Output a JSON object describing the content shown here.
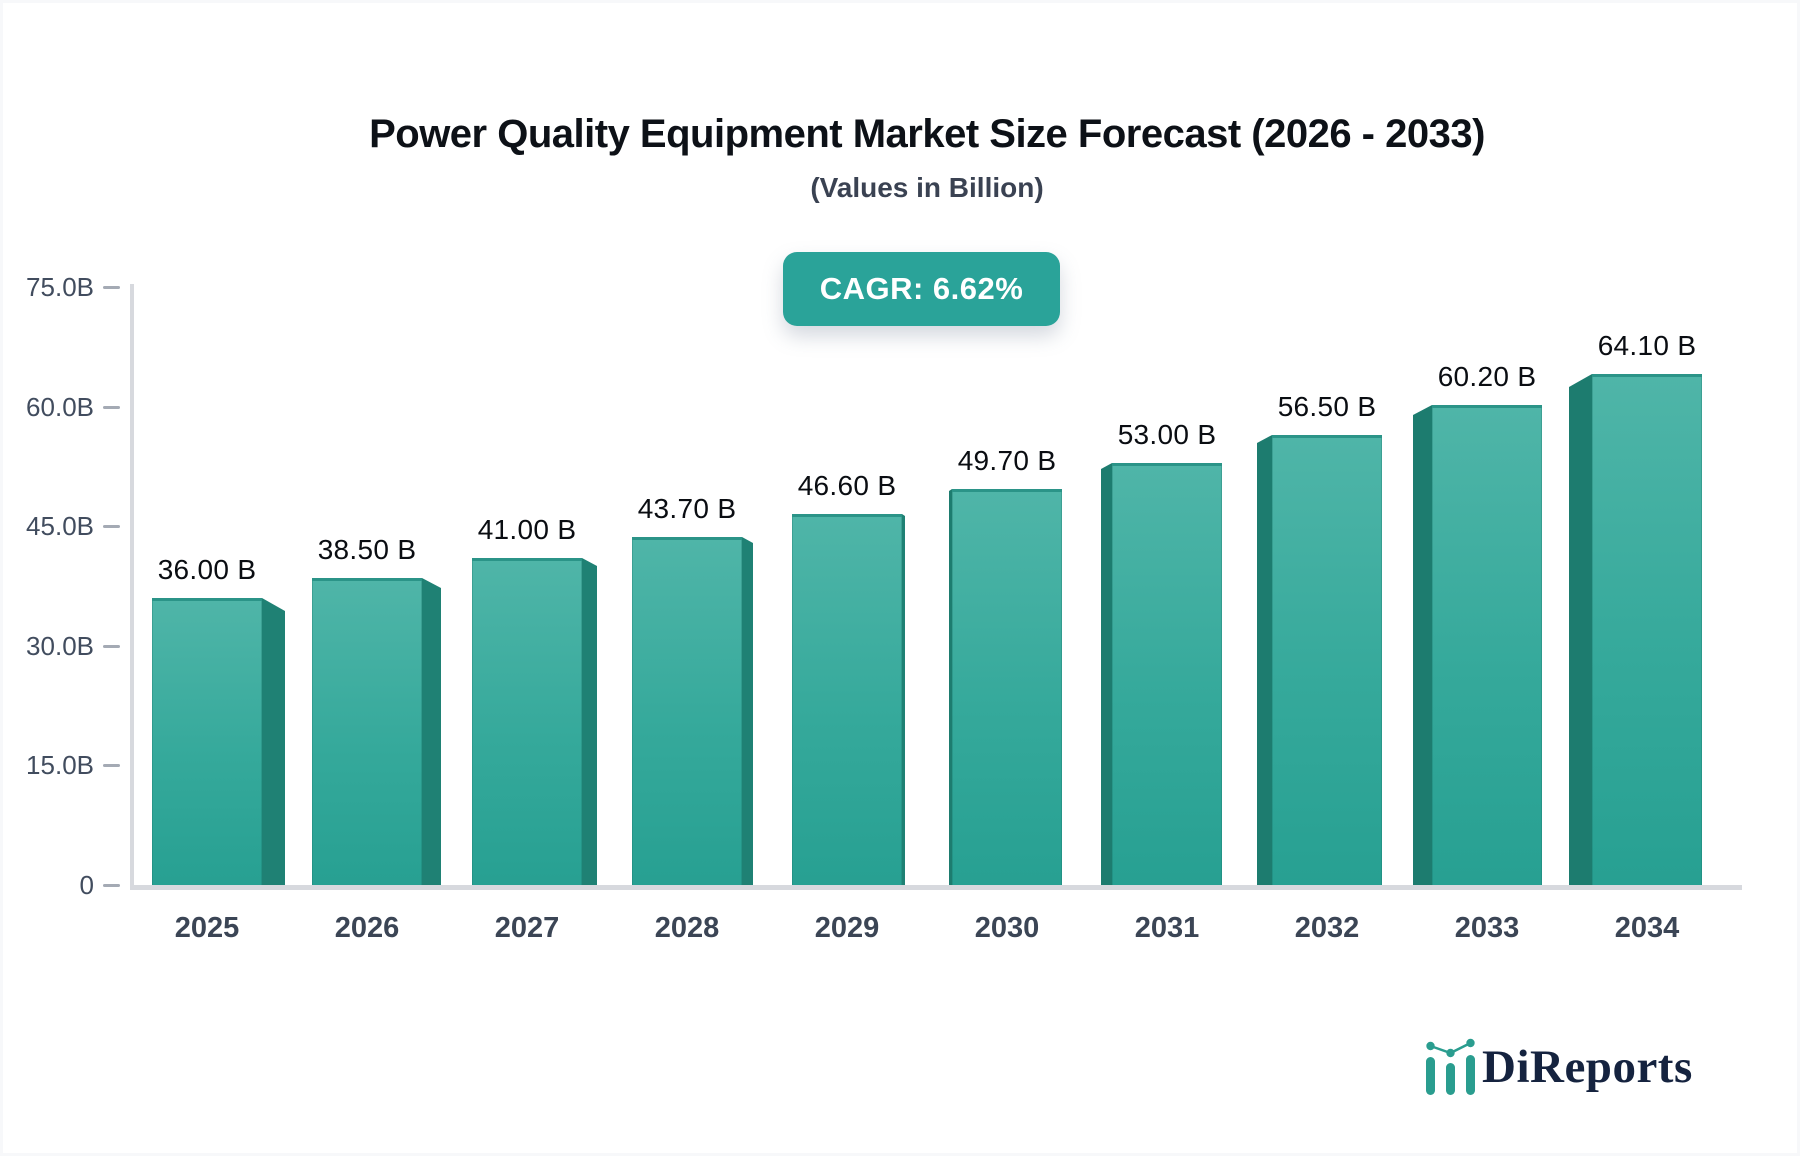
{
  "title": "Power Quality Equipment Market Size Forecast (2026 - 2033)",
  "subtitle": "(Values in Billion)",
  "cagr_badge": "CAGR: 6.62%",
  "chart_data": {
    "type": "bar",
    "title": "Power Quality Equipment Market Size Forecast (2026 - 2033)",
    "subtitle": "(Values in Billion)",
    "unit": "Billion",
    "categories": [
      "2025",
      "2026",
      "2027",
      "2028",
      "2029",
      "2030",
      "2031",
      "2032",
      "2033",
      "2034"
    ],
    "values": [
      36.0,
      38.5,
      41.0,
      43.7,
      46.6,
      49.7,
      53.0,
      56.5,
      60.2,
      64.1
    ],
    "value_labels": [
      "36.00 B",
      "38.50 B",
      "41.00 B",
      "43.70 B",
      "46.60 B",
      "49.70 B",
      "53.00 B",
      "56.50 B",
      "60.20 B",
      "64.10 B"
    ],
    "xlabel": "",
    "ylabel": "",
    "ylim": [
      0,
      75
    ],
    "y_ticks": [
      {
        "value": 0,
        "label": "0"
      },
      {
        "value": 15,
        "label": "15.0B"
      },
      {
        "value": 30,
        "label": "30.0B"
      },
      {
        "value": 45,
        "label": "45.0B"
      },
      {
        "value": 60,
        "label": "60.0B"
      },
      {
        "value": 75,
        "label": "75.0B"
      }
    ],
    "grid": false,
    "legend": "none",
    "cagr": "6.62%"
  },
  "colors": {
    "bar_front_top": "#4fb5a8",
    "bar_front_bottom": "#27a092",
    "bar_side_right": "#1f8174",
    "bar_side_left": "#1d7c6f",
    "bar_top_edge": "#2b9488",
    "badge_bg": "#2aa399",
    "axis_line": "#d7d9de",
    "tick": "#a4aab4",
    "axis_text": "#414c5e",
    "title_text": "#0d1117",
    "logo_navy": "#15233f",
    "logo_teal": "#2a9d8f"
  },
  "logo": {
    "text": "DiReports"
  }
}
